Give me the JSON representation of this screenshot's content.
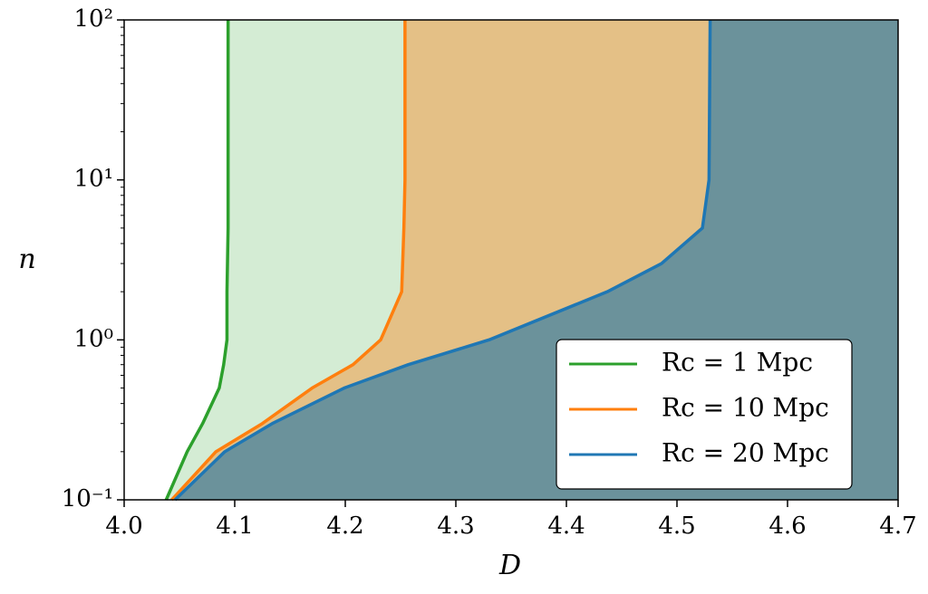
{
  "chart_data": {
    "type": "line",
    "x_label": "D",
    "y_label": "n",
    "xlim": [
      4.0,
      4.7
    ],
    "ylim": [
      0.1,
      100
    ],
    "y_scale": "log",
    "xticks": [
      {
        "value": 4,
        "label": "4.0"
      },
      4.1,
      4.2,
      4.3,
      4.4,
      4.5,
      4.6,
      4.7
    ],
    "yticks": [
      {
        "value": 0.1,
        "label": "10⁻¹"
      },
      {
        "value": 1,
        "label": "10⁰"
      },
      {
        "value": 10,
        "label": "10¹"
      },
      {
        "value": 100,
        "label": "10²"
      }
    ],
    "yminorticks": [
      0.2,
      0.3,
      0.4,
      0.5,
      0.6,
      0.7,
      0.8,
      0.9,
      2,
      3,
      4,
      5,
      6,
      7,
      8,
      9,
      20,
      30,
      40,
      50,
      60,
      70,
      80,
      90
    ],
    "legend": "lower right",
    "series": [
      {
        "name": "Rc = 1 Mpc",
        "color": "#2ca02c",
        "fill": "#d4ecd4",
        "x": [
          4.038,
          4.057,
          4.071,
          4.086,
          4.09,
          4.093,
          4.093,
          4.094,
          4.094,
          4.094
        ],
        "values": [
          0.1,
          0.2,
          0.3,
          0.5,
          0.7,
          1,
          2,
          5,
          10,
          100
        ]
      },
      {
        "name": "Rc = 10 Mpc",
        "color": "#ff7f0e",
        "fill": "#e4c086",
        "x": [
          4.043,
          4.083,
          4.125,
          4.17,
          4.207,
          4.232,
          4.251,
          4.253,
          4.254,
          4.254
        ],
        "values": [
          0.1,
          0.2,
          0.3,
          0.5,
          0.7,
          1,
          2,
          5,
          10,
          100
        ]
      },
      {
        "name": "Rc = 20 Mpc",
        "color": "#1f77b4",
        "fill": "#6b929b",
        "x": [
          4.046,
          4.091,
          4.134,
          4.199,
          4.257,
          4.33,
          4.437,
          4.486,
          4.523,
          4.529,
          4.53
        ],
        "values": [
          0.1,
          0.2,
          0.3,
          0.5,
          0.7,
          1,
          2,
          3,
          5,
          10,
          100
        ]
      }
    ]
  }
}
